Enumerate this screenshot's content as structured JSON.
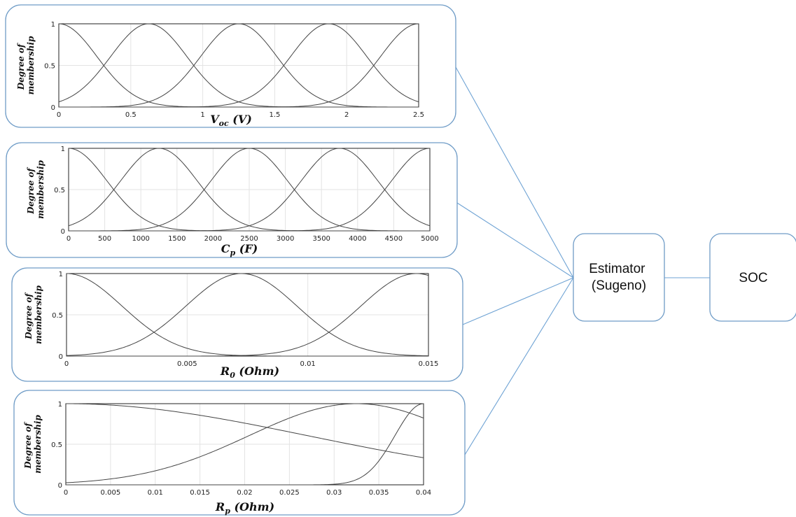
{
  "y_axis_title_line1": "Degree of",
  "y_axis_title_line2": "membership",
  "panels": [
    {
      "x_title_main": "V",
      "x_title_sub": "oc",
      "x_title_rest": " (V)",
      "chart_data": {
        "type": "line",
        "xlim": [
          0,
          2.5
        ],
        "ylim": [
          0,
          1
        ],
        "xticks": [
          "0",
          "0.5",
          "1",
          "1.5",
          "2",
          "2.5"
        ],
        "yticks": [
          "0",
          "0.5",
          "1"
        ],
        "grid": true,
        "mf_shape": "gaussian",
        "mf_centers": [
          0,
          0.625,
          1.25,
          1.875,
          2.5
        ],
        "mf_sigma": 0.265
      }
    },
    {
      "x_title_main": "C",
      "x_title_sub": "p",
      "x_title_rest": " (F)",
      "chart_data": {
        "type": "line",
        "xlim": [
          0,
          5000
        ],
        "ylim": [
          0,
          1
        ],
        "xticks": [
          "0",
          "500",
          "1000",
          "1500",
          "2000",
          "2500",
          "3000",
          "3500",
          "4000",
          "4500",
          "5000"
        ],
        "yticks": [
          "0",
          "0.5",
          "1"
        ],
        "grid": true,
        "mf_shape": "gaussian",
        "mf_centers": [
          0,
          1250,
          2500,
          3750,
          5000
        ],
        "mf_sigma": 530
      }
    },
    {
      "x_title_main": "R",
      "x_title_sub": "0",
      "x_title_rest": " (Ohm)",
      "chart_data": {
        "type": "line",
        "xlim": [
          0,
          0.015
        ],
        "ylim": [
          0,
          1
        ],
        "xticks": [
          "0",
          "0.005",
          "0.01",
          "0.015"
        ],
        "yticks": [
          "0",
          "0.5",
          "1"
        ],
        "grid": true,
        "mf_shape": "gaussian",
        "mf_centers": [
          0,
          0.00725,
          0.0145
        ],
        "mf_sigma": 0.0023
      }
    },
    {
      "x_title_main": "R",
      "x_title_sub": "p",
      "x_title_rest": " (Ohm)",
      "chart_data": {
        "type": "line",
        "xlim": [
          0,
          0.04
        ],
        "ylim": [
          0,
          1
        ],
        "xticks": [
          "0",
          "0.005",
          "0.01",
          "0.015",
          "0.02",
          "0.025",
          "0.03",
          "0.035",
          "0.04"
        ],
        "yticks": [
          "0",
          "0.5",
          "1"
        ],
        "grid": true,
        "mf_shape": "gaussian",
        "mf_centers": [
          0,
          0.0325,
          0.04
        ],
        "mf_sigma": [
          0.027,
          0.012,
          0.0032
        ]
      }
    }
  ],
  "estimator_line1": "Estimator",
  "estimator_line2": "(Sugeno)",
  "soc_label": "SOC"
}
